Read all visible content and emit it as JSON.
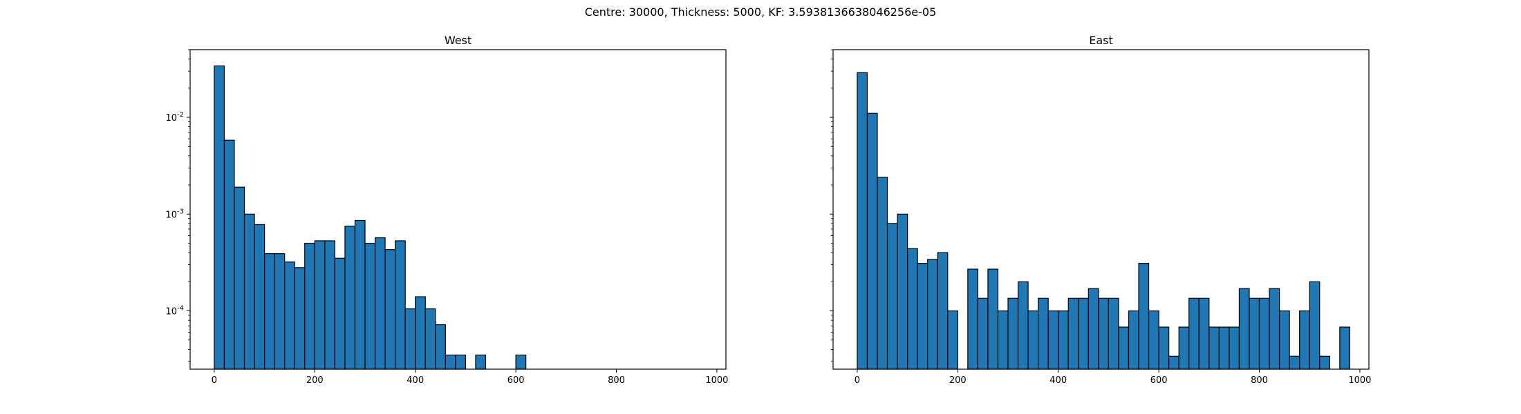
{
  "figure": {
    "suptitle": "Centre: 30000, Thickness: 5000, KF: 3.5938136638046256e-05"
  },
  "chart_data": [
    {
      "type": "bar",
      "title": "West",
      "xlabel": "",
      "ylabel": "",
      "bin_width": 20,
      "xlim": [
        -48,
        1018
      ],
      "ylim": [
        2.5e-05,
        0.05
      ],
      "yscale": "log",
      "grid": false,
      "bar_color": "#1f77b4",
      "edge_color": "#000000",
      "xticks": [
        0,
        200,
        400,
        600,
        800,
        1000
      ],
      "xtick_labels": [
        "0",
        "200",
        "400",
        "600",
        "800",
        "1000"
      ],
      "ytick_labels": [
        "10^-4",
        "10^-3",
        "10^-2"
      ],
      "bins": [
        {
          "x": 0,
          "y": 0.034
        },
        {
          "x": 20,
          "y": 0.0058
        },
        {
          "x": 40,
          "y": 0.0019
        },
        {
          "x": 60,
          "y": 0.001
        },
        {
          "x": 80,
          "y": 0.00078
        },
        {
          "x": 100,
          "y": 0.00039
        },
        {
          "x": 120,
          "y": 0.00039
        },
        {
          "x": 140,
          "y": 0.00032
        },
        {
          "x": 160,
          "y": 0.00028
        },
        {
          "x": 180,
          "y": 0.0005
        },
        {
          "x": 200,
          "y": 0.00053
        },
        {
          "x": 220,
          "y": 0.00053
        },
        {
          "x": 240,
          "y": 0.00035
        },
        {
          "x": 260,
          "y": 0.00075
        },
        {
          "x": 280,
          "y": 0.00086
        },
        {
          "x": 300,
          "y": 0.0005
        },
        {
          "x": 320,
          "y": 0.00057
        },
        {
          "x": 340,
          "y": 0.00043
        },
        {
          "x": 360,
          "y": 0.00053
        },
        {
          "x": 380,
          "y": 0.000105
        },
        {
          "x": 400,
          "y": 0.00014
        },
        {
          "x": 420,
          "y": 0.000105
        },
        {
          "x": 440,
          "y": 7.2e-05
        },
        {
          "x": 460,
          "y": 3.5e-05
        },
        {
          "x": 480,
          "y": 3.5e-05
        },
        {
          "x": 520,
          "y": 3.5e-05
        },
        {
          "x": 600,
          "y": 3.5e-05
        }
      ]
    },
    {
      "type": "bar",
      "title": "East",
      "xlabel": "",
      "ylabel": "",
      "bin_width": 20,
      "xlim": [
        -48,
        1018
      ],
      "ylim": [
        2.5e-05,
        0.05
      ],
      "yscale": "log",
      "grid": false,
      "bar_color": "#1f77b4",
      "edge_color": "#000000",
      "xticks": [
        0,
        200,
        400,
        600,
        800,
        1000
      ],
      "xtick_labels": [
        "0",
        "200",
        "400",
        "600",
        "800",
        "1000"
      ],
      "ytick_labels": [],
      "bins": [
        {
          "x": 0,
          "y": 0.029
        },
        {
          "x": 20,
          "y": 0.011
        },
        {
          "x": 40,
          "y": 0.0024
        },
        {
          "x": 60,
          "y": 0.0008
        },
        {
          "x": 80,
          "y": 0.001
        },
        {
          "x": 100,
          "y": 0.00044
        },
        {
          "x": 120,
          "y": 0.00031
        },
        {
          "x": 140,
          "y": 0.00034
        },
        {
          "x": 160,
          "y": 0.0004
        },
        {
          "x": 180,
          "y": 0.0001
        },
        {
          "x": 220,
          "y": 0.00027
        },
        {
          "x": 240,
          "y": 0.000135
        },
        {
          "x": 260,
          "y": 0.00027
        },
        {
          "x": 280,
          "y": 0.0001
        },
        {
          "x": 300,
          "y": 0.000135
        },
        {
          "x": 320,
          "y": 0.0002
        },
        {
          "x": 340,
          "y": 0.0001
        },
        {
          "x": 360,
          "y": 0.000135
        },
        {
          "x": 380,
          "y": 0.0001
        },
        {
          "x": 400,
          "y": 0.0001
        },
        {
          "x": 420,
          "y": 0.000135
        },
        {
          "x": 440,
          "y": 0.000135
        },
        {
          "x": 460,
          "y": 0.00017
        },
        {
          "x": 480,
          "y": 0.000135
        },
        {
          "x": 500,
          "y": 0.000135
        },
        {
          "x": 520,
          "y": 6.8e-05
        },
        {
          "x": 540,
          "y": 0.0001
        },
        {
          "x": 560,
          "y": 0.00031
        },
        {
          "x": 580,
          "y": 0.0001
        },
        {
          "x": 600,
          "y": 6.8e-05
        },
        {
          "x": 620,
          "y": 3.4e-05
        },
        {
          "x": 640,
          "y": 6.8e-05
        },
        {
          "x": 660,
          "y": 0.000135
        },
        {
          "x": 680,
          "y": 0.000135
        },
        {
          "x": 700,
          "y": 6.8e-05
        },
        {
          "x": 720,
          "y": 6.8e-05
        },
        {
          "x": 740,
          "y": 6.8e-05
        },
        {
          "x": 760,
          "y": 0.00017
        },
        {
          "x": 780,
          "y": 0.000135
        },
        {
          "x": 800,
          "y": 0.000135
        },
        {
          "x": 820,
          "y": 0.00017
        },
        {
          "x": 840,
          "y": 0.0001
        },
        {
          "x": 860,
          "y": 3.4e-05
        },
        {
          "x": 880,
          "y": 0.0001
        },
        {
          "x": 900,
          "y": 0.0002
        },
        {
          "x": 920,
          "y": 3.4e-05
        },
        {
          "x": 960,
          "y": 6.8e-05
        }
      ]
    }
  ]
}
